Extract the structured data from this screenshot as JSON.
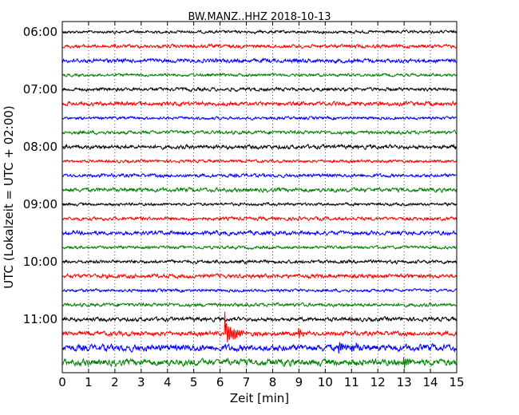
{
  "chart_data": {
    "type": "line",
    "title": "BW.MANZ..HHZ 2018-10-13",
    "xlabel": "Zeit  [min]",
    "ylabel": "UTC (Lokalzeit = UTC + 02:00)",
    "xlim": [
      0,
      15
    ],
    "xticks": [
      0,
      1,
      2,
      3,
      4,
      5,
      6,
      7,
      8,
      9,
      10,
      11,
      12,
      13,
      14,
      15
    ],
    "ytick_labels": [
      "06:00",
      "07:00",
      "08:00",
      "09:00",
      "10:00",
      "11:00"
    ],
    "ytick_rows": [
      0,
      4,
      8,
      12,
      16,
      20
    ],
    "trace_count": 24,
    "trace_interval_min": 15,
    "start_time": "06:00",
    "colors": [
      "#000000",
      "#ff0000",
      "#0000ff",
      "#008000"
    ],
    "grid": "vertical-dotted",
    "events": [
      {
        "row": 21,
        "time_min": 6.2,
        "amplitude": "large",
        "note": "spike"
      },
      {
        "row": 21,
        "time_min": 9.0,
        "amplitude": "medium"
      },
      {
        "row": 22,
        "time_min": 10.5,
        "amplitude": "medium"
      },
      {
        "row": 22,
        "time_min": 11.0,
        "amplitude": "medium"
      },
      {
        "row": 23,
        "time_min": 13.0,
        "amplitude": "medium"
      }
    ],
    "noise_level": {
      "rows_0_20": "low",
      "row_21": "medium",
      "row_22": "high",
      "row_23": "high"
    }
  }
}
